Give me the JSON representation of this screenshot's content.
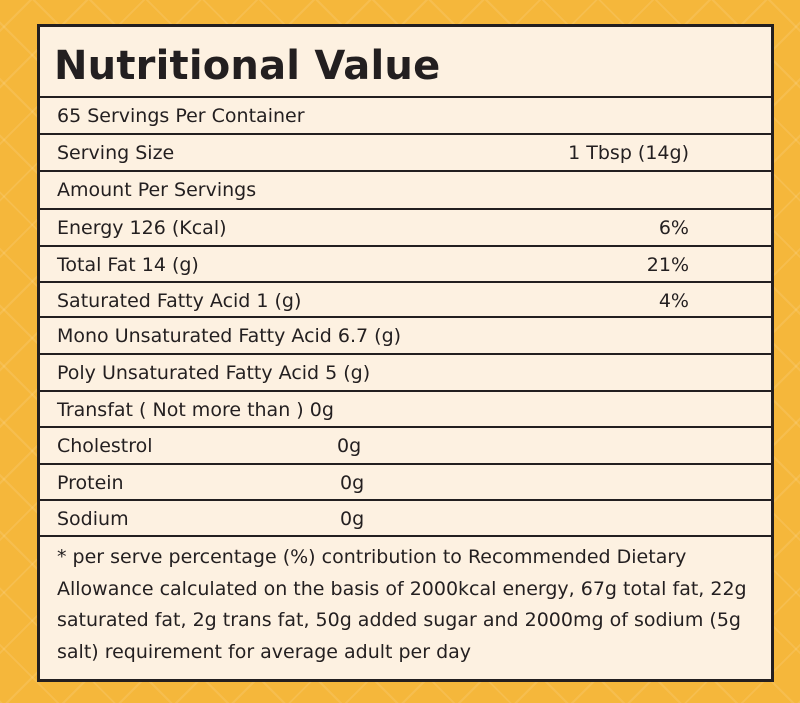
{
  "title": "Nutritional Value",
  "rows": [
    {
      "label": "65 Servings Per Container",
      "value": ""
    },
    {
      "label": "Serving Size",
      "value": "1 Tbsp (14g)"
    },
    {
      "label": "Amount Per Servings",
      "value": ""
    },
    {
      "label": "Energy 126 (Kcal)",
      "value": "6%"
    },
    {
      "label": "Total Fat 14 (g)",
      "value": "21%"
    },
    {
      "label": "Saturated Fatty Acid 1 (g)",
      "value": "4%"
    },
    {
      "label": "Mono Unsaturated Fatty Acid 6.7 (g)",
      "value": ""
    },
    {
      "label": "Poly Unsaturated Fatty Acid 5 (g)",
      "value": ""
    },
    {
      "label": "Transfat ( Not more than ) 0g",
      "value": ""
    },
    {
      "label": "Cholestrol",
      "value": "0g"
    },
    {
      "label": "Protein",
      "value": "0g"
    },
    {
      "label": "Sodium",
      "value": "0g"
    }
  ],
  "footnote": "* per serve percentage (%) contribution to Recommended Dietary Allowance calculated on the basis of 2000kcal energy, 67g total fat, 22g saturated fat, 2g trans fat, 50g added sugar and 2000mg of sodium (5g salt) requirement for average adult per day"
}
